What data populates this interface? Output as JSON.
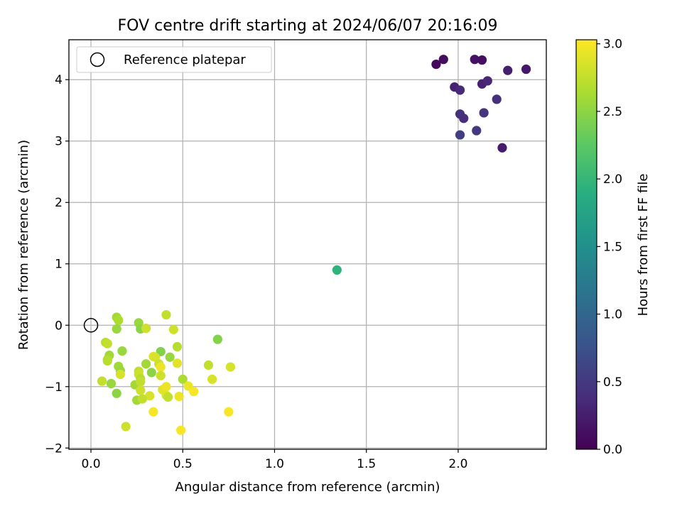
{
  "chart_data": {
    "type": "scatter",
    "title": "FOV centre drift starting at 2024/06/07 20:16:09",
    "xlabel": "Angular distance from reference (arcmin)",
    "ylabel": "Rotation from reference (arcmin)",
    "xlim": [
      -0.12,
      2.48
    ],
    "ylim": [
      -2.02,
      4.65
    ],
    "xticks": [
      0.0,
      0.5,
      1.0,
      1.5,
      2.0
    ],
    "xtick_labels": [
      "0.0",
      "0.5",
      "1.0",
      "1.5",
      "2.0"
    ],
    "yticks": [
      -2,
      -1,
      0,
      1,
      2,
      3,
      4
    ],
    "ytick_labels": [
      "−2",
      "−1",
      "0",
      "1",
      "2",
      "3",
      "4"
    ],
    "grid": true,
    "legend": {
      "position": "top-left",
      "entries": [
        "Reference platepar"
      ]
    },
    "colorbar": {
      "label": "Hours from first FF file",
      "colormap": "viridis",
      "range": [
        0.0,
        3.03
      ],
      "ticks": [
        0.0,
        0.5,
        1.0,
        1.5,
        2.0,
        2.5,
        3.0
      ],
      "tick_labels": [
        "0.0",
        "0.5",
        "1.0",
        "1.5",
        "2.0",
        "2.5",
        "3.0"
      ]
    },
    "reference_point": {
      "x": 0.0,
      "y": 0.0
    },
    "points": [
      {
        "x": 1.88,
        "y": 4.25,
        "c": 0.05
      },
      {
        "x": 1.92,
        "y": 4.33,
        "c": 0.1
      },
      {
        "x": 2.09,
        "y": 4.33,
        "c": 0.15
      },
      {
        "x": 2.13,
        "y": 4.32,
        "c": 0.12
      },
      {
        "x": 2.27,
        "y": 4.15,
        "c": 0.25
      },
      {
        "x": 2.37,
        "y": 4.17,
        "c": 0.2
      },
      {
        "x": 1.98,
        "y": 3.88,
        "c": 0.3
      },
      {
        "x": 2.01,
        "y": 3.83,
        "c": 0.35
      },
      {
        "x": 2.13,
        "y": 3.93,
        "c": 0.28
      },
      {
        "x": 2.16,
        "y": 3.98,
        "c": 0.33
      },
      {
        "x": 2.21,
        "y": 3.68,
        "c": 0.4
      },
      {
        "x": 2.01,
        "y": 3.44,
        "c": 0.42
      },
      {
        "x": 2.03,
        "y": 3.37,
        "c": 0.38
      },
      {
        "x": 2.14,
        "y": 3.46,
        "c": 0.45
      },
      {
        "x": 2.1,
        "y": 3.17,
        "c": 0.5
      },
      {
        "x": 2.01,
        "y": 3.1,
        "c": 0.55
      },
      {
        "x": 2.24,
        "y": 2.89,
        "c": 0.22
      },
      {
        "x": 1.34,
        "y": 0.9,
        "c": 1.95
      },
      {
        "x": 0.14,
        "y": 0.13,
        "c": 2.6
      },
      {
        "x": 0.15,
        "y": 0.08,
        "c": 2.65
      },
      {
        "x": 0.14,
        "y": -0.06,
        "c": 2.55
      },
      {
        "x": 0.26,
        "y": 0.04,
        "c": 2.55
      },
      {
        "x": 0.27,
        "y": -0.06,
        "c": 2.5
      },
      {
        "x": 0.3,
        "y": -0.05,
        "c": 2.8
      },
      {
        "x": 0.41,
        "y": 0.17,
        "c": 2.75
      },
      {
        "x": 0.45,
        "y": -0.07,
        "c": 2.8
      },
      {
        "x": 0.69,
        "y": -0.23,
        "c": 2.45
      },
      {
        "x": 0.08,
        "y": -0.28,
        "c": 2.7
      },
      {
        "x": 0.09,
        "y": -0.3,
        "c": 2.75
      },
      {
        "x": 0.17,
        "y": -0.42,
        "c": 2.55
      },
      {
        "x": 0.38,
        "y": -0.43,
        "c": 2.45
      },
      {
        "x": 0.47,
        "y": -0.35,
        "c": 2.7
      },
      {
        "x": 0.1,
        "y": -0.49,
        "c": 2.6
      },
      {
        "x": 0.09,
        "y": -0.56,
        "c": 2.65
      },
      {
        "x": 0.09,
        "y": -0.58,
        "c": 2.7
      },
      {
        "x": 0.34,
        "y": -0.51,
        "c": 2.9
      },
      {
        "x": 0.35,
        "y": -0.52,
        "c": 2.85
      },
      {
        "x": 0.3,
        "y": -0.63,
        "c": 2.6
      },
      {
        "x": 0.37,
        "y": -0.63,
        "c": 2.8
      },
      {
        "x": 0.43,
        "y": -0.52,
        "c": 2.55
      },
      {
        "x": 0.47,
        "y": -0.62,
        "c": 2.9
      },
      {
        "x": 0.64,
        "y": -0.65,
        "c": 2.75
      },
      {
        "x": 0.76,
        "y": -0.68,
        "c": 2.85
      },
      {
        "x": 0.15,
        "y": -0.67,
        "c": 2.6
      },
      {
        "x": 0.16,
        "y": -0.74,
        "c": 2.55
      },
      {
        "x": 0.33,
        "y": -0.77,
        "c": 2.5
      },
      {
        "x": 0.38,
        "y": -0.68,
        "c": 2.95
      },
      {
        "x": 0.16,
        "y": -0.8,
        "c": 2.85
      },
      {
        "x": 0.26,
        "y": -0.75,
        "c": 2.75
      },
      {
        "x": 0.26,
        "y": -0.8,
        "c": 2.8
      },
      {
        "x": 0.27,
        "y": -0.87,
        "c": 2.7
      },
      {
        "x": 0.38,
        "y": -0.82,
        "c": 2.8
      },
      {
        "x": 0.06,
        "y": -0.91,
        "c": 2.75
      },
      {
        "x": 0.11,
        "y": -0.95,
        "c": 2.55
      },
      {
        "x": 0.24,
        "y": -0.97,
        "c": 2.6
      },
      {
        "x": 0.27,
        "y": -0.92,
        "c": 2.75
      },
      {
        "x": 0.5,
        "y": -0.88,
        "c": 2.65
      },
      {
        "x": 0.66,
        "y": -0.88,
        "c": 2.85
      },
      {
        "x": 0.27,
        "y": -1.06,
        "c": 2.8
      },
      {
        "x": 0.39,
        "y": -1.05,
        "c": 2.9
      },
      {
        "x": 0.41,
        "y": -1.0,
        "c": 2.95
      },
      {
        "x": 0.53,
        "y": -0.99,
        "c": 2.95
      },
      {
        "x": 0.56,
        "y": -1.08,
        "c": 3.0
      },
      {
        "x": 0.14,
        "y": -1.11,
        "c": 2.5
      },
      {
        "x": 0.32,
        "y": -1.15,
        "c": 2.85
      },
      {
        "x": 0.41,
        "y": -1.14,
        "c": 2.9
      },
      {
        "x": 0.42,
        "y": -1.17,
        "c": 2.75
      },
      {
        "x": 0.48,
        "y": -1.16,
        "c": 2.95
      },
      {
        "x": 0.25,
        "y": -1.22,
        "c": 2.6
      },
      {
        "x": 0.28,
        "y": -1.2,
        "c": 2.75
      },
      {
        "x": 0.34,
        "y": -1.41,
        "c": 3.0
      },
      {
        "x": 0.75,
        "y": -1.41,
        "c": 3.0
      },
      {
        "x": 0.19,
        "y": -1.65,
        "c": 2.8
      },
      {
        "x": 0.49,
        "y": -1.71,
        "c": 3.0
      }
    ]
  }
}
